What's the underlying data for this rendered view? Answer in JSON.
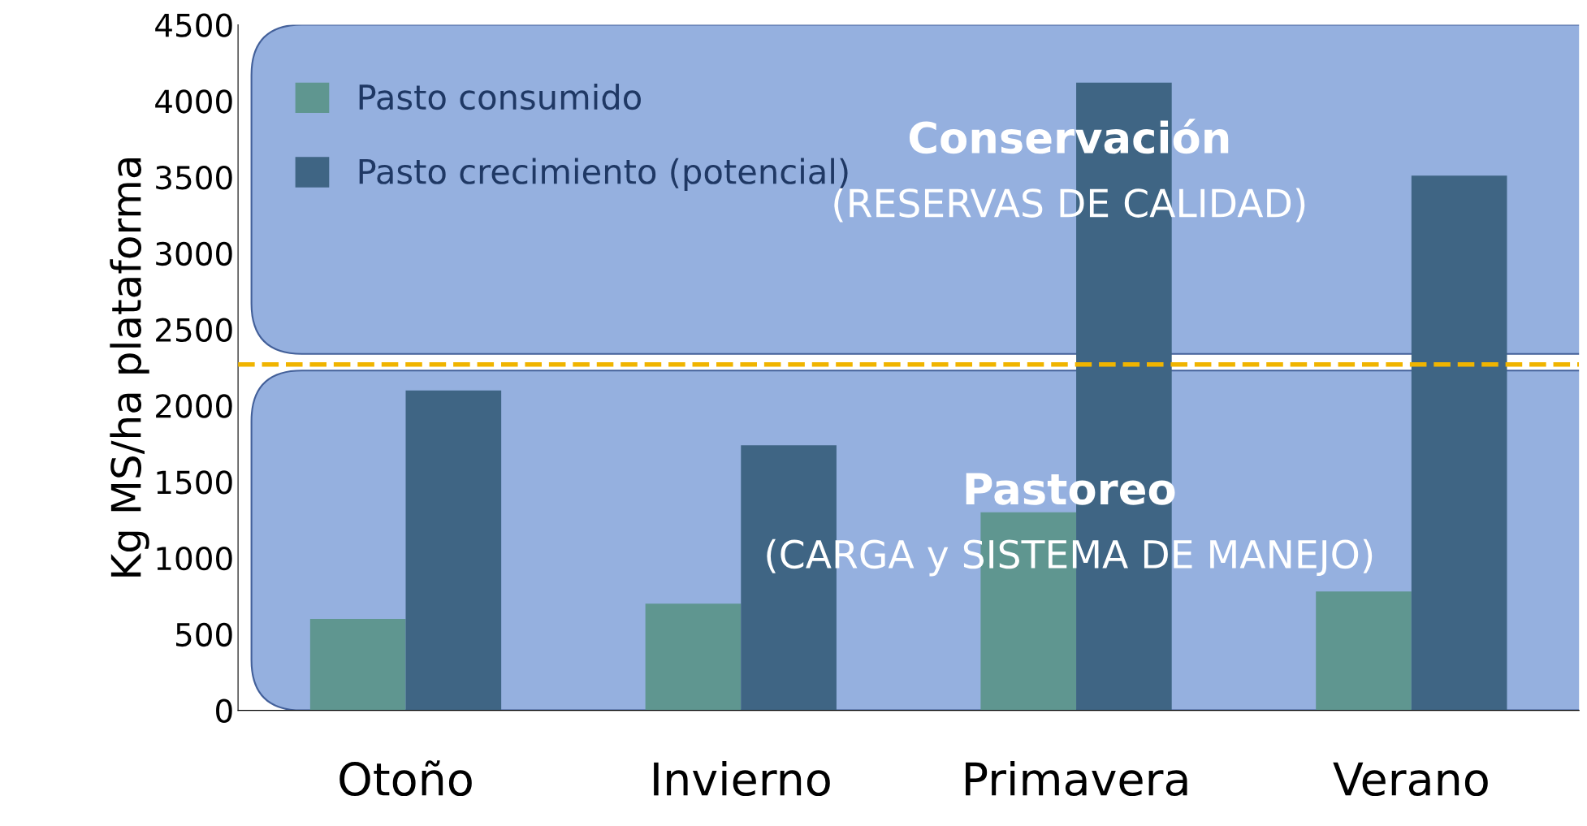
{
  "chart_data": {
    "type": "bar",
    "ylabel": "Kg MS/ha plataforma",
    "categories": [
      "Otoño",
      "Invierno",
      "Primavera",
      "Verano"
    ],
    "series": [
      {
        "name": "Pasto consumido",
        "color": "#5f9690",
        "values": [
          600,
          700,
          1300,
          780
        ]
      },
      {
        "name": "Pasto crecimiento (potencial)",
        "color": "#3f6584",
        "values": [
          2100,
          1740,
          4120,
          3510
        ]
      }
    ],
    "ylim": [
      0,
      4500
    ],
    "yticks": [
      0,
      500,
      1000,
      1500,
      2000,
      2500,
      3000,
      3500,
      4000,
      4500
    ],
    "ref_lines": [
      {
        "axis": "y",
        "value": 2270,
        "color": "#f0b400",
        "line_style": "dashed"
      }
    ],
    "bands": [
      {
        "axis": "y",
        "from": 0,
        "to": 2230,
        "label": "Pastoreo\n(CARGA y SISTEMA DE MANEJO)",
        "color": "#8aa8dc"
      },
      {
        "axis": "y",
        "from": 2340,
        "to": 4500,
        "label": "Conservación\n(RESERVAS DE CALIDAD)",
        "color": "#8aa8dc"
      }
    ],
    "grid": false,
    "legend": "top left"
  }
}
